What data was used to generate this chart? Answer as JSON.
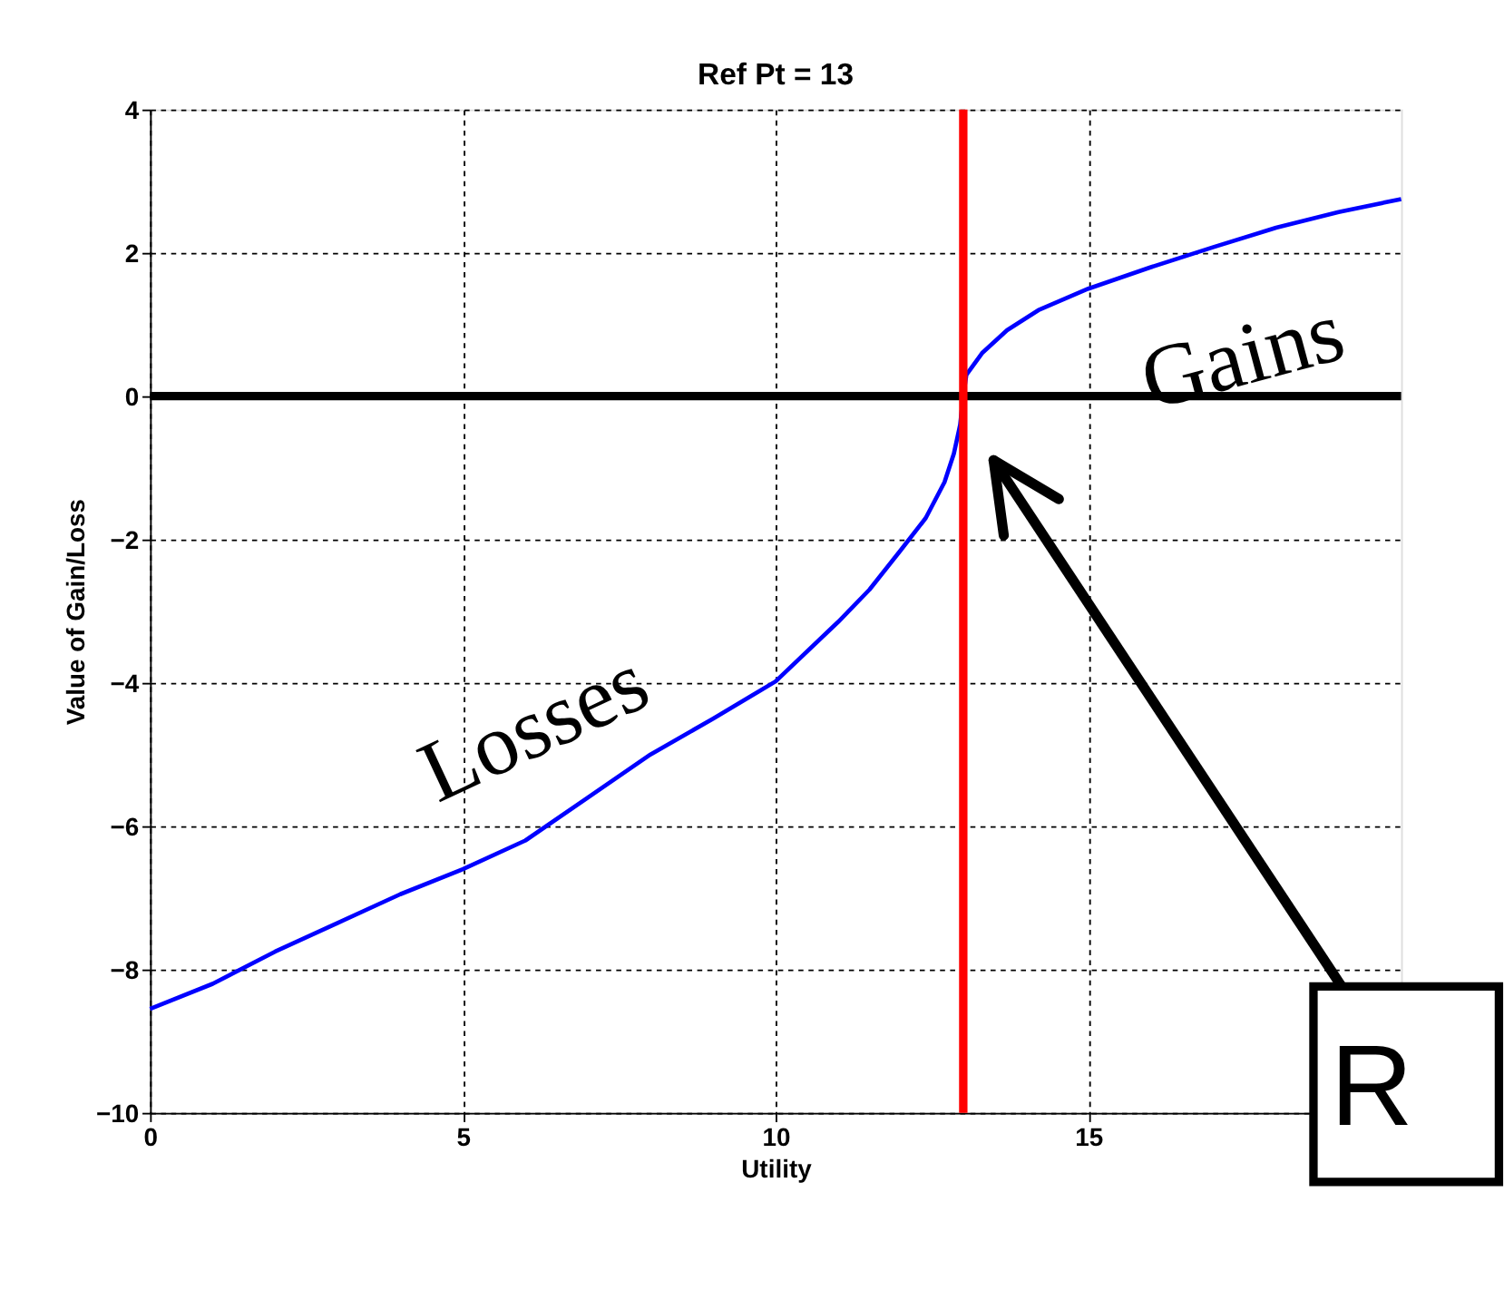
{
  "chart_data": {
    "type": "line",
    "title": "Ref Pt = 13",
    "xlabel": "Utility",
    "ylabel": "Value of Gain/Loss",
    "x": [
      0,
      1,
      2,
      3,
      4,
      5,
      6,
      7,
      8,
      9,
      10,
      11,
      11.5,
      12,
      12.4,
      12.7,
      12.85,
      12.95,
      13,
      13.05,
      13.3,
      13.7,
      14.2,
      15,
      16,
      17,
      18,
      19,
      20
    ],
    "series": [
      {
        "color": "#0000ff",
        "values": [
          -8.55,
          -8.2,
          -7.75,
          -7.35,
          -6.95,
          -6.6,
          -6.2,
          -5.6,
          -5.0,
          -4.5,
          -3.98,
          -3.15,
          -2.7,
          -2.15,
          -1.7,
          -1.2,
          -0.8,
          -0.4,
          0,
          0.3,
          0.6,
          0.92,
          1.2,
          1.5,
          1.8,
          2.08,
          2.35,
          2.57,
          2.75
        ]
      }
    ],
    "xlim": [
      0,
      20
    ],
    "xticks": [
      0,
      5,
      10,
      15
    ],
    "ylim": [
      -10,
      4
    ],
    "yticks": [
      -10,
      -8,
      -6,
      -4,
      -2,
      0,
      2,
      4
    ],
    "grid": true,
    "line_style": "solid",
    "ref_lines": [
      {
        "axis": "y",
        "value": 0,
        "color": "#000000"
      },
      {
        "axis": "x",
        "value": 13,
        "color": "#ff0000"
      }
    ],
    "annotations": [
      "Losses",
      "Gains",
      "R"
    ]
  }
}
